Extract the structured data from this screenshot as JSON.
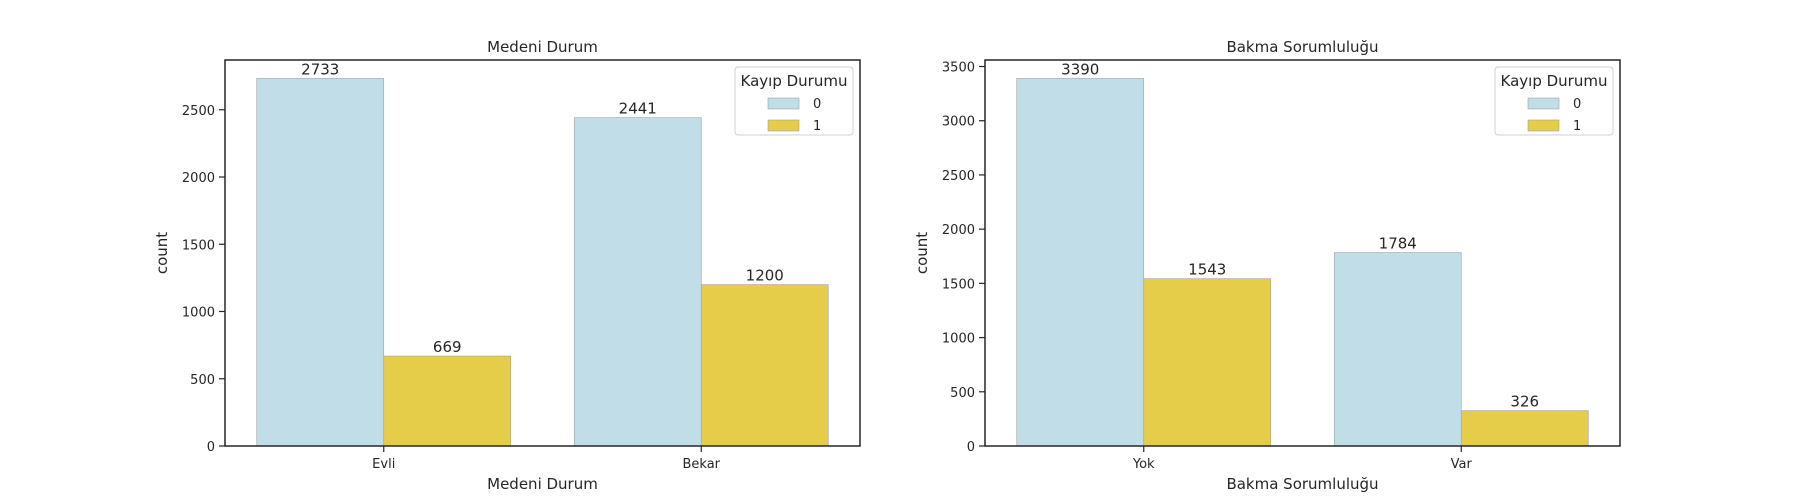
{
  "chart_data": [
    {
      "type": "bar",
      "title": "Medeni Durum",
      "xlabel": "Medeni Durum",
      "ylabel": "count",
      "categories": [
        "Evli",
        "Bekar"
      ],
      "series": [
        {
          "name": "0",
          "values": [
            2733,
            2441
          ],
          "color": "#c1dde7"
        },
        {
          "name": "1",
          "values": [
            669,
            1200
          ],
          "color": "#e5cd4a"
        }
      ],
      "yticks": [
        0,
        500,
        1000,
        1500,
        2000,
        2500
      ],
      "ylim": [
        0,
        2870
      ],
      "legend": {
        "title": "Kayıp Durumu",
        "position": "top-right"
      }
    },
    {
      "type": "bar",
      "title": "Bakma Sorumluluğu",
      "xlabel": "Bakma Sorumluluğu",
      "ylabel": "count",
      "categories": [
        "Yok",
        "Var"
      ],
      "series": [
        {
          "name": "0",
          "values": [
            3390,
            1784
          ],
          "color": "#c1dde7"
        },
        {
          "name": "1",
          "values": [
            1543,
            326
          ],
          "color": "#e5cd4a"
        }
      ],
      "yticks": [
        0,
        500,
        1000,
        1500,
        2000,
        2500,
        3000,
        3500
      ],
      "ylim": [
        0,
        3560
      ],
      "legend": {
        "title": "Kayıp Durumu",
        "position": "top-right"
      }
    }
  ]
}
